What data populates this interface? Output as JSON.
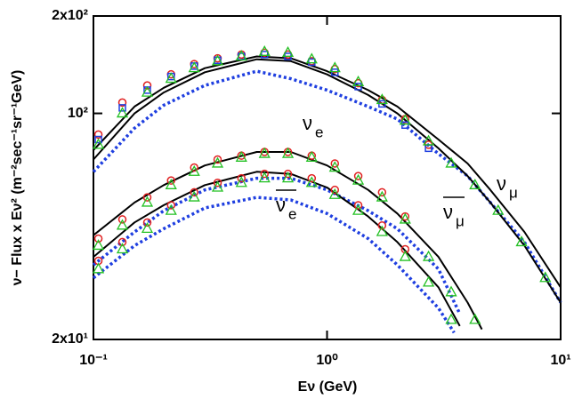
{
  "chart_data": {
    "type": "line",
    "xlabel": "Eν  (GeV)",
    "ylabel": "ν− Flux x Eν² (m⁻²sec⁻¹sr⁻¹GeV)",
    "xlog": true,
    "ylog": true,
    "xlim": [
      0.1,
      10
    ],
    "ylim": [
      20,
      200
    ],
    "xticks": [
      {
        "value": 0.1,
        "label": "10⁻¹"
      },
      {
        "value": 1,
        "label": "10⁰"
      },
      {
        "value": 10,
        "label": "10¹"
      }
    ],
    "yticks": [
      {
        "value": 20,
        "label": "2x10¹"
      },
      {
        "value": 100,
        "label": "10²"
      },
      {
        "value": 200,
        "label": "2x10²"
      }
    ],
    "annotations": [
      {
        "text": "ν",
        "sub": "e"
      },
      {
        "text": "ν",
        "sub": "e"
      },
      {
        "text": "ν",
        "sub": "μ"
      },
      {
        "text": "ν",
        "sub": "μ"
      }
    ],
    "series": [
      {
        "style": "solid",
        "color": "#000000",
        "x": [
          0.1,
          0.15,
          0.2,
          0.3,
          0.5,
          0.7,
          1,
          1.5,
          2,
          3,
          4,
          5,
          7,
          10
        ],
        "values": [
          77,
          105,
          120,
          138,
          150,
          148,
          135,
          118,
          105,
          83,
          70,
          58,
          43,
          29
        ]
      },
      {
        "style": "solid",
        "color": "#000000",
        "x": [
          0.1,
          0.15,
          0.2,
          0.3,
          0.5,
          0.7,
          1,
          1.5,
          2,
          3,
          4,
          5,
          7,
          10
        ],
        "values": [
          72,
          100,
          116,
          134,
          147,
          145,
          132,
          114,
          100,
          78,
          64,
          53,
          39,
          26
        ]
      },
      {
        "style": "solid",
        "color": "#000000",
        "x": [
          0.1,
          0.15,
          0.2,
          0.3,
          0.5,
          0.7,
          1,
          1.5,
          2,
          3,
          4,
          4.6
        ],
        "values": [
          42,
          53,
          60,
          69,
          76,
          76,
          69,
          58,
          49,
          36,
          26,
          21.5
        ]
      },
      {
        "style": "solid",
        "color": "#000000",
        "x": [
          0.1,
          0.15,
          0.2,
          0.3,
          0.5,
          0.7,
          1,
          1.5,
          2,
          3,
          3.7
        ],
        "values": [
          36,
          46,
          52,
          60,
          66,
          65,
          59,
          48,
          40,
          29,
          22
        ]
      },
      {
        "style": "dotted",
        "color": "#1f3fe0",
        "x": [
          0.1,
          0.15,
          0.2,
          0.3,
          0.5,
          0.7,
          1,
          1.5,
          2,
          3,
          4,
          5,
          7,
          10
        ],
        "values": [
          66,
          90,
          106,
          122,
          135,
          128,
          118,
          105,
          96,
          75,
          64,
          53,
          40,
          26
        ]
      },
      {
        "style": "dotted",
        "color": "#1f3fe0",
        "x": [
          0.1,
          0.15,
          0.2,
          0.3,
          0.5,
          0.7,
          1,
          1.5,
          2,
          3,
          3.7
        ],
        "values": [
          34,
          43,
          50,
          58,
          63,
          63,
          58,
          50,
          44,
          33,
          24
        ]
      },
      {
        "style": "dotted",
        "color": "#1f3fe0",
        "x": [
          0.1,
          0.15,
          0.2,
          0.3,
          0.5,
          0.7,
          1,
          1.5,
          2,
          3,
          3.5
        ],
        "values": [
          31,
          39,
          44,
          51,
          55,
          54,
          49,
          41,
          34,
          25,
          21
        ]
      },
      {
        "style": "circle",
        "color": "#e02020",
        "x": [
          0.105,
          0.133,
          0.17,
          0.215,
          0.27,
          0.34,
          0.43,
          0.54,
          0.68,
          0.86,
          1.08,
          1.36,
          1.72,
          2.16,
          2.72
        ],
        "values": [
          86,
          108,
          122,
          132,
          142,
          148,
          152,
          154,
          152,
          145,
          137,
          124,
          110,
          96,
          80
        ]
      },
      {
        "style": "square",
        "color": "#1f3fe0",
        "x": [
          0.105,
          0.133,
          0.17,
          0.215,
          0.27,
          0.34,
          0.43,
          0.54,
          0.68,
          0.86,
          1.08,
          1.36,
          1.72,
          2.16,
          2.72
        ],
        "values": [
          83,
          104,
          118,
          130,
          140,
          146,
          150,
          152,
          150,
          144,
          134,
          121,
          107,
          92,
          78
        ]
      },
      {
        "style": "triangle",
        "color": "#22c022",
        "x": [
          0.105,
          0.133,
          0.17,
          0.215,
          0.27,
          0.34,
          0.43,
          0.54,
          0.68,
          0.86,
          1.08,
          1.36,
          1.72,
          2.16,
          2.72,
          3.4,
          4.3,
          5.4,
          6.8,
          8.6
        ],
        "values": [
          80,
          100,
          116,
          128,
          138,
          145,
          150,
          155,
          154,
          147,
          138,
          125,
          110,
          95,
          82,
          70,
          60,
          50,
          40,
          31
        ]
      },
      {
        "style": "circle",
        "color": "#e02020",
        "x": [
          0.105,
          0.133,
          0.17,
          0.215,
          0.27,
          0.34,
          0.43,
          0.54,
          0.68,
          0.86,
          1.08,
          1.36,
          1.72,
          2.16
        ],
        "values": [
          41,
          47,
          55,
          62,
          68,
          72,
          74,
          76,
          76,
          74,
          70,
          64,
          57,
          48
        ]
      },
      {
        "style": "triangle",
        "color": "#22c022",
        "x": [
          0.105,
          0.133,
          0.17,
          0.215,
          0.27,
          0.34,
          0.43,
          0.54,
          0.68,
          0.86,
          1.08,
          1.36,
          1.72,
          2.16,
          2.72,
          3.4,
          4.3
        ],
        "values": [
          39,
          45,
          53,
          60,
          66,
          70,
          73,
          75,
          75,
          73,
          68,
          62,
          55,
          47,
          36,
          28,
          23
        ]
      },
      {
        "style": "circle",
        "color": "#e02020",
        "x": [
          0.105,
          0.133,
          0.17,
          0.215,
          0.27,
          0.34,
          0.43,
          0.54,
          0.68,
          0.86,
          1.08,
          1.36,
          1.72,
          2.16
        ],
        "values": [
          35,
          40,
          46,
          52,
          57,
          61,
          63,
          65,
          65,
          63,
          58,
          52,
          45,
          38
        ]
      },
      {
        "style": "triangle",
        "color": "#22c022",
        "x": [
          0.105,
          0.133,
          0.17,
          0.215,
          0.27,
          0.34,
          0.43,
          0.54,
          0.68,
          0.86,
          1.08,
          1.36,
          1.72,
          2.16,
          2.72,
          3.4
        ],
        "values": [
          33,
          38,
          44,
          50,
          55,
          59,
          61,
          63,
          63,
          61,
          56,
          50,
          43,
          36,
          30,
          23
        ]
      }
    ]
  }
}
